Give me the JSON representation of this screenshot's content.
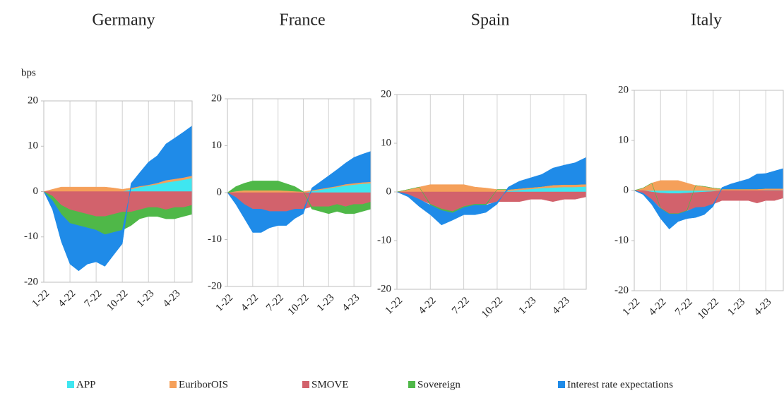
{
  "chart_data": [
    {
      "type": "area",
      "stacked": true,
      "title": "Germany",
      "ylabel": "bps",
      "categories": [
        "1-22",
        null,
        null,
        "4-22",
        null,
        null,
        "7-22",
        null,
        null,
        "10-22",
        null,
        null,
        "1-23",
        null,
        null,
        "4-23",
        null,
        null
      ],
      "ylim": [
        -20,
        20
      ],
      "yticks": [
        -20,
        -10,
        0,
        10,
        20
      ],
      "grid": true,
      "series": [
        {
          "name": "APP",
          "color": "#3fe6f0",
          "values": [
            0,
            0,
            0,
            0,
            0,
            0,
            0,
            0,
            0,
            0,
            0.5,
            1,
            1.3,
            1.6,
            2,
            2.3,
            2.6,
            3
          ]
        },
        {
          "name": "EuriborOIS",
          "color": "#f5a05a",
          "values": [
            0,
            0.5,
            1,
            1,
            1,
            1,
            1,
            1,
            0.8,
            0.5,
            0.3,
            0.2,
            0.2,
            0.3,
            0.5,
            0.5,
            0.5,
            0.5
          ]
        },
        {
          "name": "SMOVE",
          "color": "#d2626c",
          "values": [
            0,
            -1,
            -3,
            -4,
            -4.5,
            -5,
            -5.5,
            -5.5,
            -5,
            -4.5,
            -4.5,
            -4,
            -3.5,
            -3.5,
            -4,
            -3.5,
            -3.5,
            -3
          ]
        },
        {
          "name": "Sovereign",
          "color": "#4fb848",
          "values": [
            0,
            -1,
            -2,
            -3,
            -3,
            -3,
            -3,
            -4,
            -4,
            -4,
            -3,
            -2,
            -2,
            -2,
            -2,
            -2.5,
            -2,
            -2
          ]
        },
        {
          "name": "Interest rate expectations",
          "color": "#1f8be8",
          "values": [
            0,
            -2,
            -6,
            -9,
            -10,
            -8,
            -7,
            -7,
            -5,
            -3,
            1,
            3,
            5,
            6,
            8,
            9,
            10,
            11
          ]
        }
      ]
    },
    {
      "type": "area",
      "stacked": true,
      "title": "France",
      "categories": [
        "1-22",
        null,
        null,
        "4-22",
        null,
        null,
        "7-22",
        null,
        null,
        "10-22",
        null,
        null,
        "1-23",
        null,
        null,
        "4-23",
        null,
        null
      ],
      "ylim": [
        -20,
        20
      ],
      "yticks": [
        -20,
        -10,
        0,
        10,
        20
      ],
      "grid": true,
      "series": [
        {
          "values": [
            0,
            0,
            0,
            0,
            0,
            0,
            0,
            0,
            0,
            0,
            0.3,
            0.6,
            0.9,
            1.2,
            1.5,
            1.7,
            1.9,
            2
          ]
        },
        {
          "values": [
            0,
            0.3,
            0.5,
            0.5,
            0.5,
            0.5,
            0.5,
            0.4,
            0.3,
            0.2,
            0.2,
            0.2,
            0.2,
            0.2,
            0.3,
            0.3,
            0.3,
            0.3
          ]
        },
        {
          "values": [
            0,
            -1,
            -2.5,
            -3.5,
            -3.5,
            -4,
            -4,
            -4,
            -3.5,
            -3.5,
            -3,
            -3,
            -3,
            -2.5,
            -3,
            -2.5,
            -2.5,
            -2
          ]
        },
        {
          "values": [
            0,
            1,
            1.5,
            2,
            2,
            2,
            2,
            1.5,
            1,
            0,
            -0.5,
            -1,
            -1.5,
            -1.5,
            -1.5,
            -2,
            -1.5,
            -1.5
          ]
        },
        {
          "values": [
            0,
            -1.5,
            -3,
            -5,
            -5,
            -3.5,
            -3,
            -3,
            -2,
            -1,
            0.5,
            1.5,
            2.5,
            3.5,
            4.5,
            5.5,
            6,
            6.5
          ]
        }
      ]
    },
    {
      "type": "area",
      "stacked": true,
      "title": "Spain",
      "categories": [
        "1-22",
        null,
        null,
        "4-22",
        null,
        null,
        "7-22",
        null,
        null,
        "10-22",
        null,
        null,
        "1-23",
        null,
        null,
        "4-23",
        null,
        null
      ],
      "ylim": [
        -20,
        20
      ],
      "yticks": [
        -20,
        -10,
        0,
        10,
        20
      ],
      "grid": true,
      "series": [
        {
          "values": [
            0,
            0,
            0,
            0,
            0,
            0,
            0,
            0,
            0,
            0,
            0.2,
            0.4,
            0.6,
            0.8,
            0.9,
            1,
            1,
            1.1
          ]
        },
        {
          "values": [
            0,
            0.5,
            1,
            1.5,
            1.5,
            1.5,
            1.5,
            1,
            0.8,
            0.5,
            0.3,
            0.3,
            0.3,
            0.3,
            0.5,
            0.5,
            0.5,
            0.5
          ]
        },
        {
          "values": [
            0,
            -0.5,
            -1.5,
            -2.5,
            -3.5,
            -4,
            -3,
            -2.5,
            -2.5,
            -2,
            -2,
            -2,
            -1.5,
            -1.5,
            -2,
            -1.5,
            -1.5,
            -1
          ]
        },
        {
          "values": [
            0,
            0,
            0,
            -0.2,
            -0.3,
            -0.3,
            -0.2,
            -0.2,
            -0.2,
            0,
            0,
            0,
            0,
            0,
            0,
            0,
            0,
            0
          ]
        },
        {
          "values": [
            0,
            -0.5,
            -1.5,
            -2,
            -3,
            -1.5,
            -1.5,
            -2,
            -1.5,
            -0.5,
            0.5,
            1.5,
            2,
            2.5,
            3.5,
            4,
            4.5,
            5.5
          ]
        }
      ]
    },
    {
      "type": "area",
      "stacked": true,
      "title": "Italy",
      "categories": [
        "1-22",
        null,
        null,
        "4-22",
        null,
        null,
        "7-22",
        null,
        null,
        "10-22",
        null,
        null,
        "1-23",
        null,
        null,
        "4-23",
        null,
        null
      ],
      "ylim": [
        -20,
        20
      ],
      "yticks": [
        -20,
        -10,
        0,
        10,
        20
      ],
      "grid": true,
      "series": [
        {
          "values": [
            0,
            0,
            -0.3,
            -0.5,
            -0.6,
            -0.6,
            -0.5,
            -0.4,
            -0.3,
            -0.2,
            0,
            0,
            0,
            0,
            0,
            0.1,
            0.1,
            0.1
          ]
        },
        {
          "values": [
            0,
            0.5,
            1.5,
            2,
            2,
            2,
            1.5,
            1,
            0.8,
            0.5,
            0.3,
            0.3,
            0.3,
            0.3,
            0.3,
            0.3,
            0.3,
            0.3
          ]
        },
        {
          "values": [
            0,
            -0.5,
            -1.5,
            -3,
            -4,
            -4,
            -3.5,
            -3,
            -3,
            -2.5,
            -2,
            -2,
            -2,
            -2,
            -2.5,
            -2,
            -2,
            -1.5
          ]
        },
        {
          "values": [
            0,
            0,
            0,
            -0.1,
            -0.1,
            -0.1,
            -0.1,
            0,
            0,
            0,
            0,
            0,
            0,
            0,
            0,
            0,
            0,
            0
          ]
        },
        {
          "values": [
            0,
            -0.3,
            -1,
            -2,
            -3,
            -1.5,
            -1.5,
            -2,
            -1.5,
            -0.5,
            0.3,
            1,
            1.5,
            2,
            3,
            3,
            3.5,
            4
          ]
        }
      ]
    }
  ]
}
